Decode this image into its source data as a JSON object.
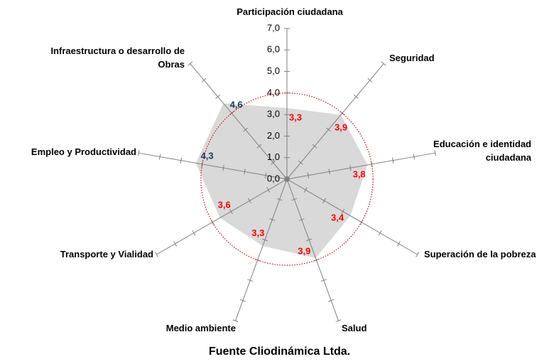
{
  "chart_data": {
    "type": "radar",
    "caption": "Fuente Cliodinámica Ltda.",
    "categories": [
      "Participación ciudadana",
      "Seguridad",
      "Educación e identidad ciudadana",
      "Superación de la pobreza",
      "Salud",
      "Medio ambiente",
      "Transporte y Vialidad",
      "Empleo y Productividad",
      "Infraestructura o desarrollo de Obras"
    ],
    "values": [
      3.3,
      3.9,
      3.8,
      3.4,
      3.9,
      3.3,
      3.6,
      4.3,
      4.6
    ],
    "value_labels": [
      "3,3",
      "3,9",
      "3,8",
      "3,4",
      "3,9",
      "3,3",
      "3,6",
      "4,3",
      "4,6"
    ],
    "color": "#d9d9d9",
    "rlim": [
      0,
      7
    ],
    "rticks": [
      {
        "value": 0,
        "label": "0,0"
      },
      {
        "value": 1,
        "label": "1,0"
      },
      {
        "value": 2,
        "label": "2,0"
      },
      {
        "value": 3,
        "label": "3,0"
      },
      {
        "value": 4,
        "label": "4,0"
      },
      {
        "value": 5,
        "label": "5,0"
      },
      {
        "value": 6,
        "label": "6,0"
      },
      {
        "value": 7,
        "label": "7,0"
      }
    ],
    "reference_ring": {
      "value": 4,
      "color": "#e00000"
    },
    "label_colors": {
      "below": "#ff0000",
      "above": "#1f3864"
    }
  }
}
